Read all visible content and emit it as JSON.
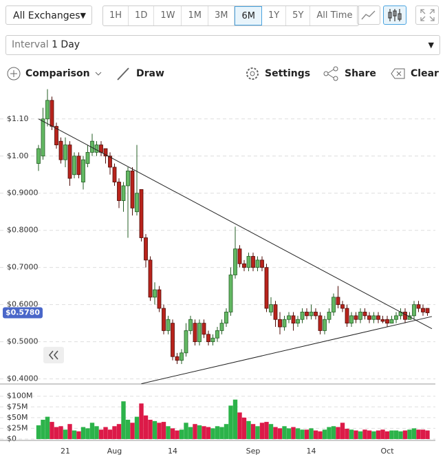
{
  "toolbar": {
    "exchange": "All Exchanges",
    "ranges": [
      "1H",
      "1D",
      "1W",
      "1M",
      "3M",
      "6M",
      "1Y",
      "5Y",
      "All Time"
    ],
    "active_range": "6M",
    "interval_label": "Interval",
    "interval": "1 Day",
    "tools": [
      "Comparison",
      "Draw",
      "Settings",
      "Share",
      "Clear"
    ]
  },
  "chart_data": {
    "type": "candlestick",
    "categories": [
      null,
      null,
      null,
      null,
      null,
      null,
      "21",
      null,
      null,
      null,
      null,
      null,
      null,
      null,
      null,
      null,
      null,
      "Aug",
      null,
      null,
      null,
      null,
      null,
      null,
      null,
      null,
      null,
      null,
      null,
      null,
      "14",
      null,
      null,
      null,
      null,
      null,
      null,
      null,
      null,
      null,
      null,
      null,
      null,
      null,
      null,
      null,
      null,
      null,
      "Sep",
      null,
      null,
      null,
      null,
      null,
      null,
      null,
      null,
      null,
      null,
      null,
      null,
      "14",
      null,
      null,
      null,
      null,
      null,
      null,
      null,
      null,
      null,
      null,
      null,
      null,
      null,
      null,
      null,
      null,
      "Oct",
      null,
      null,
      null,
      null,
      null,
      null,
      null,
      null,
      null
    ],
    "open": [
      0.98,
      1.0,
      1.1,
      1.15,
      1.08,
      1.04,
      0.99,
      1.03,
      0.95,
      1.0,
      0.93,
      0.98,
      1.01,
      1.01,
      1.03,
      1.02,
      1.0,
      0.97,
      0.93,
      0.88,
      0.92,
      0.96,
      0.85,
      0.91,
      0.78,
      0.72,
      0.62,
      0.64,
      0.59,
      0.53,
      0.55,
      0.46,
      0.45,
      0.47,
      0.53,
      0.55,
      0.5,
      0.55,
      0.52,
      0.5,
      0.51,
      0.53,
      0.55,
      0.58,
      0.68,
      0.75,
      0.71,
      0.7,
      0.73,
      0.7,
      0.72,
      0.7,
      0.58,
      0.6,
      0.56,
      0.54,
      0.56,
      0.57,
      0.55,
      0.56,
      0.58,
      0.57,
      0.58,
      0.57,
      0.53,
      0.56,
      0.58,
      0.62,
      0.6,
      0.59,
      0.55,
      0.57,
      0.56,
      0.58,
      0.57,
      0.56,
      0.57,
      0.56,
      0.56,
      0.55,
      0.56,
      0.57,
      0.58,
      0.56,
      0.57,
      0.6,
      0.59,
      0.59
    ],
    "high": [
      1.03,
      1.13,
      1.18,
      1.16,
      1.09,
      1.05,
      1.05,
      1.04,
      1.01,
      1.01,
      1.0,
      1.03,
      1.06,
      1.04,
      1.04,
      1.02,
      1.01,
      0.98,
      0.94,
      0.93,
      0.97,
      0.97,
      1.03,
      0.91,
      0.79,
      0.73,
      0.66,
      0.65,
      0.6,
      0.57,
      0.56,
      0.47,
      0.48,
      0.55,
      0.57,
      0.56,
      0.56,
      0.56,
      0.53,
      0.52,
      0.54,
      0.56,
      0.59,
      0.7,
      0.81,
      0.76,
      0.72,
      0.74,
      0.74,
      0.73,
      0.73,
      0.71,
      0.62,
      0.61,
      0.58,
      0.57,
      0.58,
      0.58,
      0.57,
      0.59,
      0.59,
      0.6,
      0.59,
      0.58,
      0.57,
      0.59,
      0.63,
      0.65,
      0.61,
      0.6,
      0.58,
      0.58,
      0.59,
      0.59,
      0.58,
      0.58,
      0.58,
      0.57,
      0.57,
      0.57,
      0.58,
      0.59,
      0.59,
      0.58,
      0.61,
      0.61,
      0.6,
      0.59
    ],
    "low": [
      0.96,
      0.99,
      1.08,
      1.07,
      1.02,
      0.98,
      0.97,
      0.92,
      0.94,
      0.94,
      0.91,
      0.97,
      1.0,
      1.0,
      1.0,
      0.98,
      0.95,
      0.92,
      0.86,
      0.85,
      0.78,
      0.84,
      0.84,
      0.77,
      0.7,
      0.61,
      0.6,
      0.58,
      0.52,
      0.52,
      0.45,
      0.44,
      0.44,
      0.46,
      0.52,
      0.49,
      0.49,
      0.51,
      0.49,
      0.49,
      0.5,
      0.52,
      0.54,
      0.57,
      0.67,
      0.7,
      0.69,
      0.69,
      0.69,
      0.69,
      0.69,
      0.58,
      0.57,
      0.54,
      0.52,
      0.53,
      0.55,
      0.53,
      0.54,
      0.55,
      0.56,
      0.56,
      0.56,
      0.52,
      0.52,
      0.55,
      0.57,
      0.59,
      0.58,
      0.54,
      0.54,
      0.55,
      0.55,
      0.56,
      0.55,
      0.55,
      0.55,
      0.55,
      0.54,
      0.55,
      0.55,
      0.56,
      0.55,
      0.56,
      0.56,
      0.58,
      0.57,
      0.57
    ],
    "close": [
      1.02,
      1.1,
      1.15,
      1.08,
      1.03,
      0.99,
      1.03,
      0.94,
      1.0,
      0.95,
      0.99,
      1.01,
      1.04,
      1.03,
      1.01,
      1.0,
      0.97,
      0.93,
      0.88,
      0.92,
      0.96,
      0.86,
      0.9,
      0.78,
      0.72,
      0.62,
      0.64,
      0.59,
      0.53,
      0.56,
      0.46,
      0.45,
      0.47,
      0.53,
      0.56,
      0.5,
      0.55,
      0.52,
      0.5,
      0.51,
      0.53,
      0.55,
      0.58,
      0.68,
      0.75,
      0.71,
      0.7,
      0.73,
      0.7,
      0.72,
      0.7,
      0.59,
      0.6,
      0.56,
      0.54,
      0.56,
      0.57,
      0.55,
      0.56,
      0.58,
      0.57,
      0.58,
      0.57,
      0.53,
      0.56,
      0.58,
      0.62,
      0.6,
      0.59,
      0.55,
      0.57,
      0.56,
      0.58,
      0.57,
      0.56,
      0.57,
      0.56,
      0.555,
      0.55,
      0.56,
      0.57,
      0.58,
      0.56,
      0.57,
      0.6,
      0.59,
      0.58,
      0.578
    ],
    "volume": [
      32000000.0,
      45000000.0,
      52000000.0,
      40000000.0,
      28000000.0,
      30000000.0,
      22000000.0,
      35000000.0,
      20000000.0,
      18000000.0,
      28000000.0,
      25000000.0,
      38000000.0,
      30000000.0,
      22000000.0,
      28000000.0,
      22000000.0,
      30000000.0,
      35000000.0,
      88000000.0,
      45000000.0,
      38000000.0,
      52000000.0,
      83000000.0,
      55000000.0,
      45000000.0,
      42000000.0,
      38000000.0,
      40000000.0,
      30000000.0,
      25000000.0,
      20000000.0,
      22000000.0,
      38000000.0,
      28000000.0,
      35000000.0,
      32000000.0,
      30000000.0,
      28000000.0,
      25000000.0,
      30000000.0,
      28000000.0,
      35000000.0,
      78000000.0,
      92000000.0,
      62000000.0,
      50000000.0,
      42000000.0,
      35000000.0,
      30000000.0,
      38000000.0,
      40000000.0,
      35000000.0,
      28000000.0,
      25000000.0,
      30000000.0,
      25000000.0,
      28000000.0,
      25000000.0,
      22000000.0,
      22000000.0,
      25000000.0,
      20000000.0,
      18000000.0,
      22000000.0,
      28000000.0,
      30000000.0,
      28000000.0,
      38000000.0,
      24000000.0,
      22000000.0,
      20000000.0,
      18000000.0,
      22000000.0,
      20000000.0,
      18000000.0,
      20000000.0,
      22000000.0,
      18000000.0,
      20000000.0,
      20000000.0,
      18000000.0,
      20000000.0,
      22000000.0,
      25000000.0,
      22000000.0,
      22000000.0,
      20000000.0
    ],
    "up_color": "#63b863",
    "down_color": "#b8231c",
    "volume_up_color": "#2cb34a",
    "volume_down_color": "#dc1a48",
    "ylim": [
      0.39,
      1.183
    ],
    "yticks": [
      {
        "value": 1.1,
        "label": "$1.10"
      },
      {
        "value": 1.0,
        "label": "$1.00"
      },
      {
        "value": 0.9,
        "label": "$0.9000"
      },
      {
        "value": 0.8,
        "label": "$0.8000"
      },
      {
        "value": 0.7,
        "label": "$0.7000"
      },
      {
        "value": 0.6,
        "label": "$0.6000"
      },
      {
        "value": 0.5,
        "label": "$0.5000"
      },
      {
        "value": 0.4,
        "label": "$0.4000"
      }
    ],
    "volume_ylim": [
      0,
      122000000.0
    ],
    "volume_ticks": [
      {
        "value": 100000000.0,
        "label": "$100M"
      },
      {
        "value": 75000000.0,
        "label": "$75M"
      },
      {
        "value": 50000000.0,
        "label": "$50M"
      },
      {
        "value": 25000000.0,
        "label": "$25M"
      },
      {
        "value": 0,
        "label": "$0"
      }
    ],
    "last_price": {
      "value": 0.578,
      "label": "$0.5780"
    },
    "trendlines": [
      {
        "start": [
          0,
          1.1
        ],
        "end": [
          88,
          0.535
        ]
      },
      {
        "start": [
          23,
          0.387
        ],
        "end": [
          88,
          0.568
        ]
      }
    ],
    "grid": true
  }
}
